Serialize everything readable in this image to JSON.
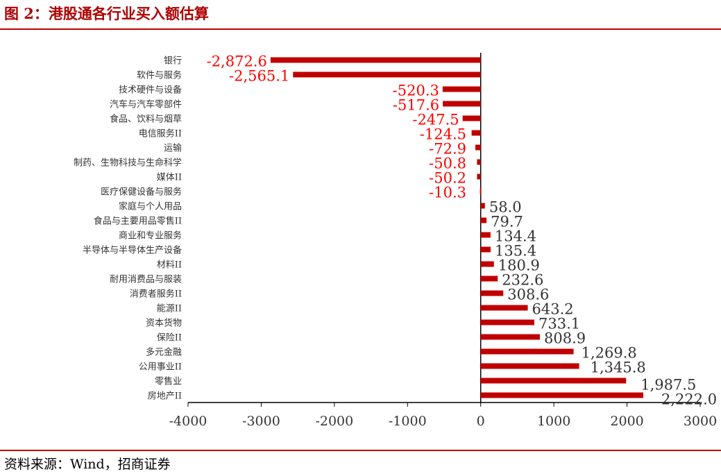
{
  "title": "图 2：港股通各行业买入额估算",
  "source": "资料来源：Wind，招商证券",
  "colors": {
    "bar": "#c00000",
    "negative_label": "#ff0000",
    "positive_label": "#333333"
  },
  "chart_data": {
    "type": "bar",
    "orientation": "horizontal",
    "title": "港股通各行业买入额估算",
    "xlim": [
      -4000,
      3000
    ],
    "xticks": [
      -4000,
      -3000,
      -2000,
      -1000,
      0,
      1000,
      2000,
      3000
    ],
    "grid": false,
    "categories": [
      "银行",
      "软件与服务",
      "技术硬件与设备",
      "汽车与汽车零部件",
      "食品、饮料与烟草",
      "电信服务II",
      "运输",
      "制药、生物科技与生命科学",
      "媒体II",
      "医疗保健设备与服务",
      "家庭与个人用品",
      "食品与主要用品零售II",
      "商业和专业服务",
      "半导体与半导体生产设备",
      "材料II",
      "耐用消费品与服装",
      "消费者服务II",
      "能源II",
      "资本货物",
      "保险II",
      "多元金融",
      "公用事业II",
      "零售业",
      "房地产II"
    ],
    "values": [
      -2872.6,
      -2565.1,
      -520.3,
      -517.6,
      -247.5,
      -124.5,
      -72.9,
      -50.8,
      -50.2,
      -10.3,
      58.0,
      79.7,
      134.4,
      135.4,
      180.9,
      232.6,
      308.6,
      643.2,
      733.1,
      808.9,
      1269.8,
      1345.8,
      1987.5,
      2222.0
    ],
    "labels": [
      "-2,872.6",
      "-2,565.1",
      "-520.3",
      "-517.6",
      "-247.5",
      "-124.5",
      "-72.9",
      "-50.8",
      "-50.2",
      "-10.3",
      "58.0",
      "79.7",
      "134.4",
      "135.4",
      "180.9",
      "232.6",
      "308.6",
      "643.2",
      "733.1",
      "808.9",
      "1,269.8",
      "1,345.8",
      "1,987.5",
      "2,222.0"
    ]
  }
}
